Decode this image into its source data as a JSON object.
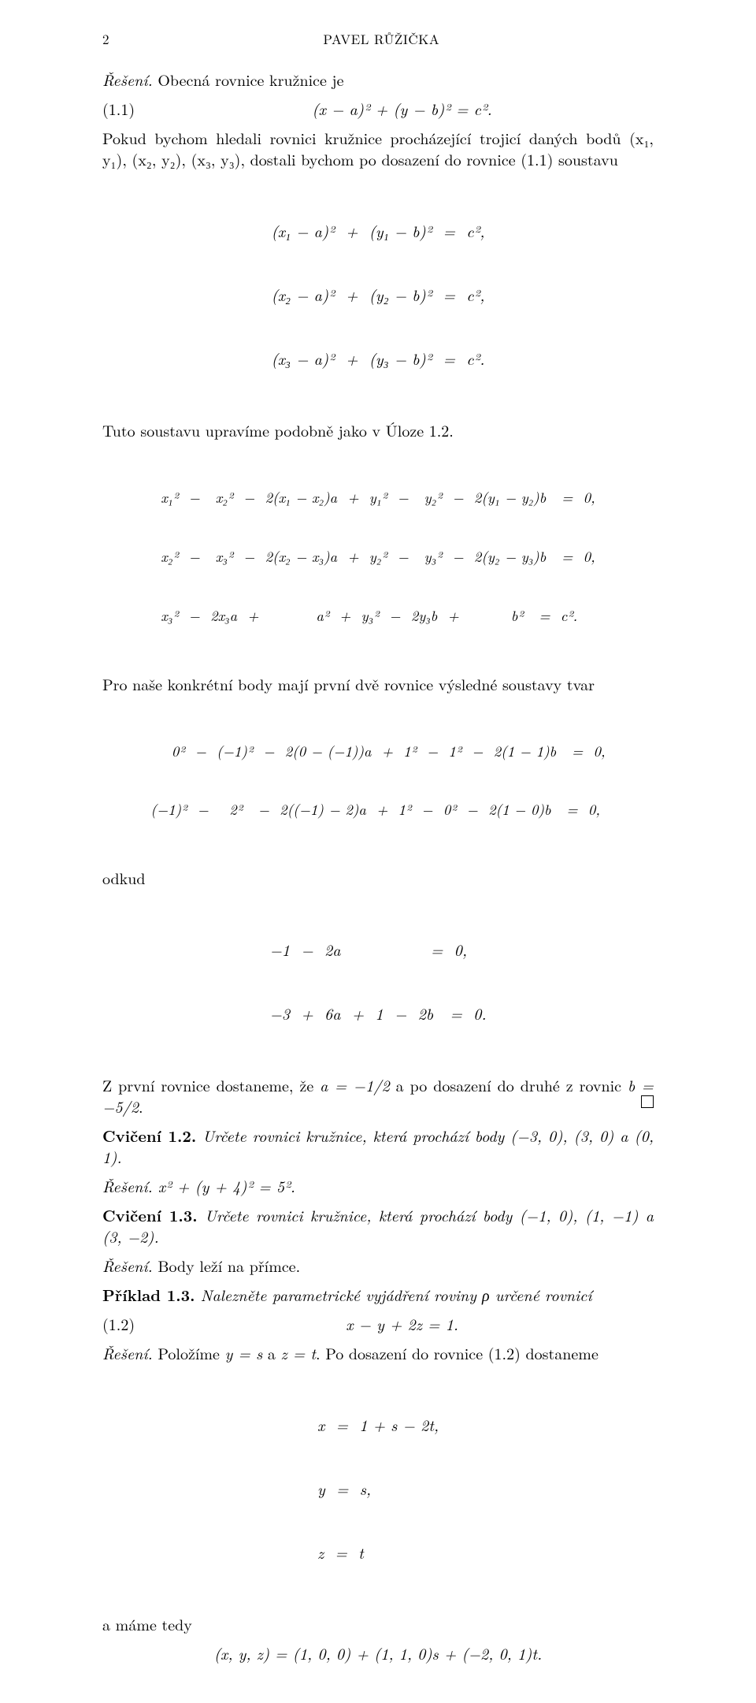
{
  "page": {
    "number": "2",
    "author": "PAVEL RŮŽIČKA"
  },
  "text": {
    "reseni_label": "Řešení.",
    "intro": " Obecná rovnice kružnice je",
    "eq11_num": "(1.1)",
    "eq11_body": "(x − a)² + (y − b)² = c².",
    "para1": "Pokud bychom hledali rovnici kružnice procházející trojicí daných bodů (x₁, y₁), (x₂, y₂), (x₃, y₃), dostali bychom po dosazení do rovnice (1.1) soustavu",
    "sys1_l1": "(x₁ − a)²  +  (y₁ − b)²  =  c²,",
    "sys1_l2": "(x₂ − a)²  +  (y₂ − b)²  =  c²,",
    "sys1_l3": "(x₃ − a)²  +  (y₃ − b)²  =  c².",
    "para2": "Tuto soustavu upravíme podobně jako v Úloze 1.2.",
    "sys2_l1": "x₁²  −   x₂²  −  2(x₁ − x₂)a  +  y₁²  −   y₂²  −  2(y₁ − y₂)b   =  0,",
    "sys2_l2": "x₂²  −   x₃²  −  2(x₂ − x₃)a  +  y₂²  −   y₃²  −  2(y₂ − y₃)b   =  0,",
    "sys2_l3": "x₃²  −  2x₃a  +           a²  +  y₃²  −  2y₃b  +          b²   =  c².",
    "para3": "Pro naše konkrétní body mají první dvě rovnice výsledné soustavy tvar",
    "sys3_l1": "    0²  −  (−1)²  −  2(0 − (−1))a  +  1²  −  1²  −  2(1 − 1)b   =  0,",
    "sys3_l2": "(−1)²  −    2²   −  2((−1) − 2)a  +  1²  −  0²  −  2(1 − 0)b   =  0,",
    "odkud": "odkud",
    "sys4_l1": "−1  −  2a                =  0,",
    "sys4_l2": "−3  +  6a  +  1  −  2b   =  0.",
    "para4a": "Z první rovnice dostaneme, že ",
    "para4b": "a = −1/2",
    "para4c": " a po dosazení do druhé z rovnic ",
    "para4d": "b = −5/2",
    "para4e": ".",
    "cvic12_head": "Cvičení 1.2.",
    "cvic12_body": " Určete rovnici kružnice, která prochází body (−3, 0), (3, 0) a (0, 1).",
    "res12_body": " x² + (y + 4)² = 5².",
    "cvic13_head": "Cvičení 1.3.",
    "cvic13_body": " Určete rovnici kružnice, která prochází body (−1, 0), (1, −1) a (3, −2).",
    "res13_body": " Body leží na přímce.",
    "pr13_head": "Příklad 1.3.",
    "pr13_body": " Nalezněte parametrické vyjádření roviny ρ určené rovnicí",
    "eq12_num": "(1.2)",
    "eq12_body": "x − y + 2z = 1.",
    "res_sub": " Položíme ",
    "res_sub_eq1": "y = s",
    "res_sub_mid": " a ",
    "res_sub_eq2": "z = t",
    "res_sub_end": ". Po dosazení do rovnice (1.2) dostaneme",
    "sys5_l1": "x  =  1 + s − 2t,",
    "sys5_l2": "y  =  s,",
    "sys5_l3": "z  =  t",
    "mame": "a máme tedy",
    "final": "(x, y, z) = (1, 0, 0) + (1, 1, 0)s + (−2, 0, 1)t."
  },
  "style": {
    "background_color": "#ffffff",
    "text_color": "#000000",
    "body_fontsize": 20,
    "header_fontsize": 17
  }
}
